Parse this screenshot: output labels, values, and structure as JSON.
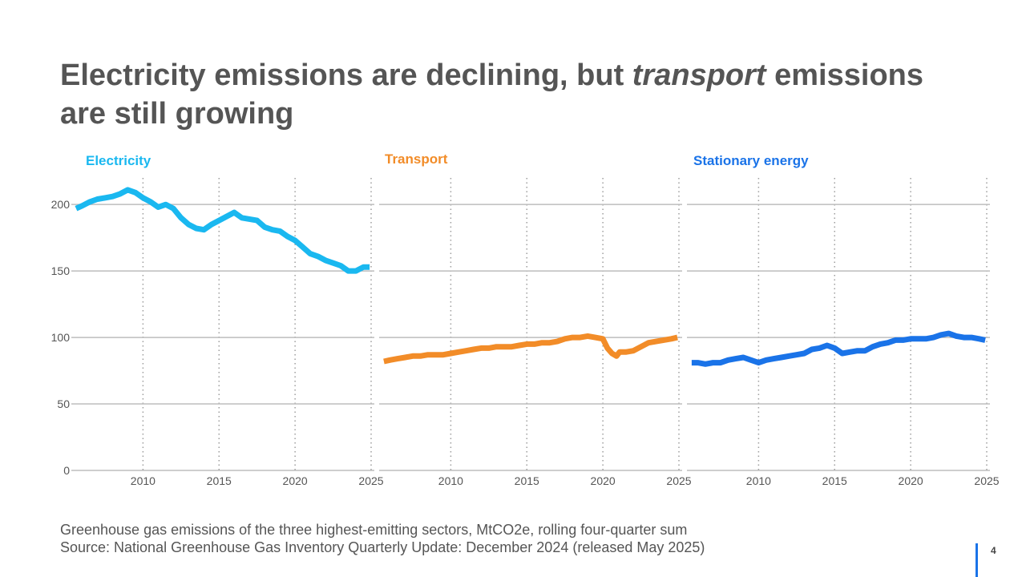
{
  "title": {
    "part1": "Electricity emissions are declining, but ",
    "italic": "transport",
    "part2": " emissions are still growing"
  },
  "footnote": {
    "line1": "Greenhouse gas emissions of the three highest-emitting sectors, MtCO2e, rolling four-quarter sum",
    "line2": "Source: National Greenhouse Gas Inventory Quarterly Update: December 2024 (released May 2025)"
  },
  "page_number": "4",
  "colors": {
    "electricity": "#1ab8f0",
    "transport": "#f28c28",
    "stationary": "#1a73e8",
    "grid": "#bdbdbd",
    "text": "#555555"
  },
  "chart_data": [
    {
      "type": "line",
      "title": "Electricity",
      "ylim": [
        0,
        220
      ],
      "yticks": [
        0,
        50,
        100,
        150,
        200
      ],
      "xlim": [
        2005.5,
        2025
      ],
      "xticks": [
        2010,
        2015,
        2020,
        2025
      ],
      "grid": true,
      "series": [
        {
          "name": "Electricity",
          "x": [
            2005.6,
            2006,
            2006.5,
            2007,
            2007.5,
            2008,
            2008.5,
            2009,
            2009.5,
            2010,
            2010.5,
            2011,
            2011.5,
            2012,
            2012.5,
            2013,
            2013.5,
            2014,
            2014.5,
            2015,
            2015.5,
            2016,
            2016.5,
            2017,
            2017.5,
            2018,
            2018.5,
            2019,
            2019.5,
            2020,
            2020.5,
            2021,
            2021.5,
            2022,
            2022.5,
            2023,
            2023.5,
            2024,
            2024.5,
            2024.9
          ],
          "y": [
            197,
            199,
            202,
            204,
            205,
            206,
            208,
            211,
            209,
            205,
            202,
            198,
            200,
            197,
            190,
            185,
            182,
            181,
            185,
            188,
            191,
            194,
            190,
            189,
            188,
            183,
            181,
            180,
            176,
            173,
            168,
            163,
            161,
            158,
            156,
            154,
            150,
            150,
            153,
            153
          ]
        }
      ]
    },
    {
      "type": "line",
      "title": "Transport",
      "ylim": [
        0,
        220
      ],
      "yticks": [
        0,
        50,
        100,
        150,
        200
      ],
      "xlim": [
        2005.5,
        2025
      ],
      "xticks": [
        2010,
        2015,
        2020,
        2025
      ],
      "grid": true,
      "series": [
        {
          "name": "Transport",
          "x": [
            2005.6,
            2006,
            2006.5,
            2007,
            2007.5,
            2008,
            2008.5,
            2009,
            2009.5,
            2010,
            2010.5,
            2011,
            2011.5,
            2012,
            2012.5,
            2013,
            2013.5,
            2014,
            2014.5,
            2015,
            2015.5,
            2016,
            2016.5,
            2017,
            2017.5,
            2018,
            2018.5,
            2019,
            2019.5,
            2020,
            2020.3,
            2020.6,
            2020.9,
            2021.1,
            2021.5,
            2022,
            2022.5,
            2023,
            2023.5,
            2024,
            2024.5,
            2024.9
          ],
          "y": [
            82,
            83,
            84,
            85,
            86,
            86,
            87,
            87,
            87,
            88,
            89,
            90,
            91,
            92,
            92,
            93,
            93,
            93,
            94,
            95,
            95,
            96,
            96,
            97,
            99,
            100,
            100,
            101,
            100,
            99,
            92,
            88,
            86,
            89,
            89,
            90,
            93,
            96,
            97,
            98,
            99,
            100
          ]
        }
      ]
    },
    {
      "type": "line",
      "title": "Stationary energy",
      "ylim": [
        0,
        220
      ],
      "yticks": [
        0,
        50,
        100,
        150,
        200
      ],
      "xlim": [
        2005.5,
        2025
      ],
      "xticks": [
        2010,
        2015,
        2020,
        2025
      ],
      "grid": true,
      "series": [
        {
          "name": "Stationary energy",
          "x": [
            2005.6,
            2006,
            2006.5,
            2007,
            2007.5,
            2008,
            2008.5,
            2009,
            2009.5,
            2010,
            2010.5,
            2011,
            2011.5,
            2012,
            2012.5,
            2013,
            2013.5,
            2014,
            2014.5,
            2015,
            2015.5,
            2016,
            2016.5,
            2017,
            2017.5,
            2018,
            2018.5,
            2019,
            2019.5,
            2020,
            2020.5,
            2021,
            2021.5,
            2022,
            2022.5,
            2023,
            2023.5,
            2024,
            2024.5,
            2024.9
          ],
          "y": [
            81,
            81,
            80,
            81,
            81,
            83,
            84,
            85,
            83,
            81,
            83,
            84,
            85,
            86,
            87,
            88,
            91,
            92,
            94,
            92,
            88,
            89,
            90,
            90,
            93,
            95,
            96,
            98,
            98,
            99,
            99,
            99,
            100,
            102,
            103,
            101,
            100,
            100,
            99,
            98
          ]
        }
      ]
    }
  ]
}
